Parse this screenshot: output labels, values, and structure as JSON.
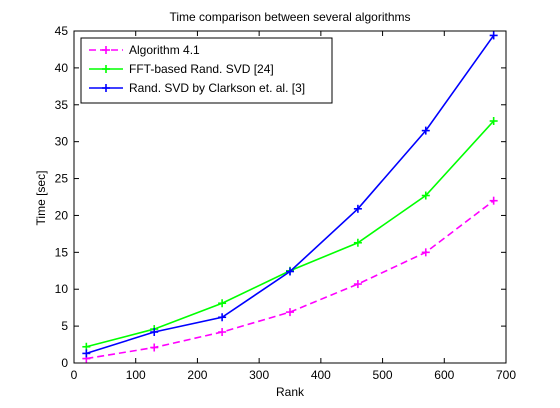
{
  "chart_data": {
    "type": "line",
    "title": "Time comparison between several algorithms",
    "xlabel": "Rank",
    "ylabel": "Time [sec]",
    "xlim": [
      0,
      700
    ],
    "ylim": [
      0,
      45
    ],
    "xticks": [
      0,
      100,
      200,
      300,
      400,
      500,
      600,
      700
    ],
    "yticks": [
      0,
      5,
      10,
      15,
      20,
      25,
      30,
      35,
      40,
      45
    ],
    "grid": true,
    "legend_position": "top-left",
    "series": [
      {
        "name": "Algorithm 4.1",
        "color": "#ff00ff",
        "dashed": true,
        "marker": "plus",
        "x": [
          20,
          130,
          240,
          350,
          460,
          570,
          680
        ],
        "y": [
          0.6,
          2.1,
          4.2,
          6.9,
          10.7,
          15.0,
          22.0
        ]
      },
      {
        "name": "FFT-based Rand. SVD [24]",
        "color": "#00ff00",
        "dashed": false,
        "marker": "plus",
        "x": [
          20,
          130,
          240,
          350,
          460,
          570,
          680
        ],
        "y": [
          2.2,
          4.6,
          8.1,
          12.5,
          16.3,
          22.7,
          32.8
        ]
      },
      {
        "name": "Rand. SVD by Clarkson et. al. [3]",
        "color": "#0000ff",
        "dashed": false,
        "marker": "plus",
        "x": [
          20,
          130,
          240,
          350,
          460,
          570,
          680
        ],
        "y": [
          1.3,
          4.2,
          6.2,
          12.4,
          20.9,
          31.5,
          44.4
        ]
      }
    ]
  }
}
